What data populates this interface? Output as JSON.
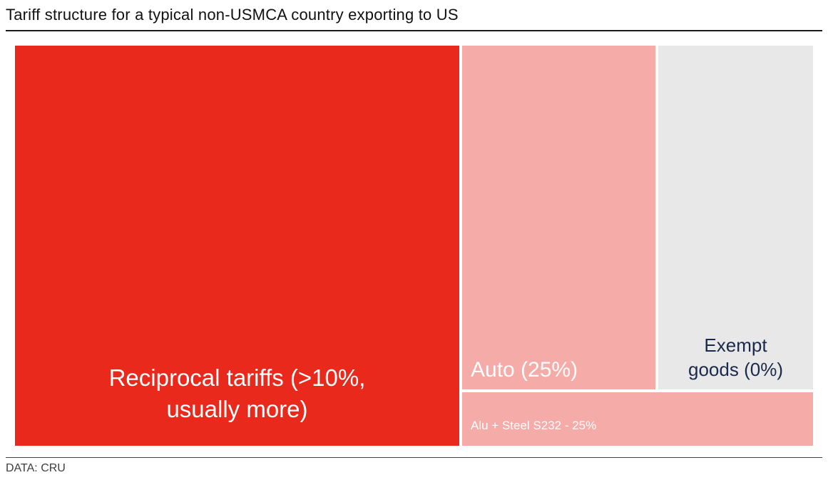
{
  "title": "Tariff structure for a typical non-USMCA country exporting to US",
  "source": "DATA: CRU",
  "blocks": {
    "reciprocal": {
      "line1": "Reciprocal tariffs (>10%,",
      "line2": "usually more)"
    },
    "auto": {
      "label": "Auto (25%)"
    },
    "exempt": {
      "line1": "Exempt",
      "line2": "goods (0%)"
    },
    "alu_steel": {
      "label": "Alu + Steel S232 - 25%"
    }
  },
  "chart_data": {
    "type": "treemap",
    "title": "Tariff structure for a typical non-USMCA country exporting to US",
    "source": "DATA: CRU",
    "segments": [
      {
        "label": "Reciprocal tariffs (>10%, usually more)",
        "tariff_rate": ">10%, usually more",
        "area_share_pct_est": 56,
        "color": "#e8291c",
        "text_color": "#ffffff"
      },
      {
        "label": "Auto (25%)",
        "tariff_rate": "25%",
        "area_share_pct_est": 21,
        "color": "#f5aba7",
        "text_color": "#ffffff"
      },
      {
        "label": "Exempt goods (0%)",
        "tariff_rate": "0%",
        "area_share_pct_est": 17,
        "color": "#e8e8e8",
        "text_color": "#1b2a4a"
      },
      {
        "label": "Alu + Steel S232 - 25%",
        "tariff_rate": "25%",
        "area_share_pct_est": 6,
        "color": "#f5aba7",
        "text_color": "#ffffff"
      }
    ],
    "layout_hints": {
      "legend": "none",
      "grid": "off",
      "labels_inside_blocks": true
    }
  }
}
